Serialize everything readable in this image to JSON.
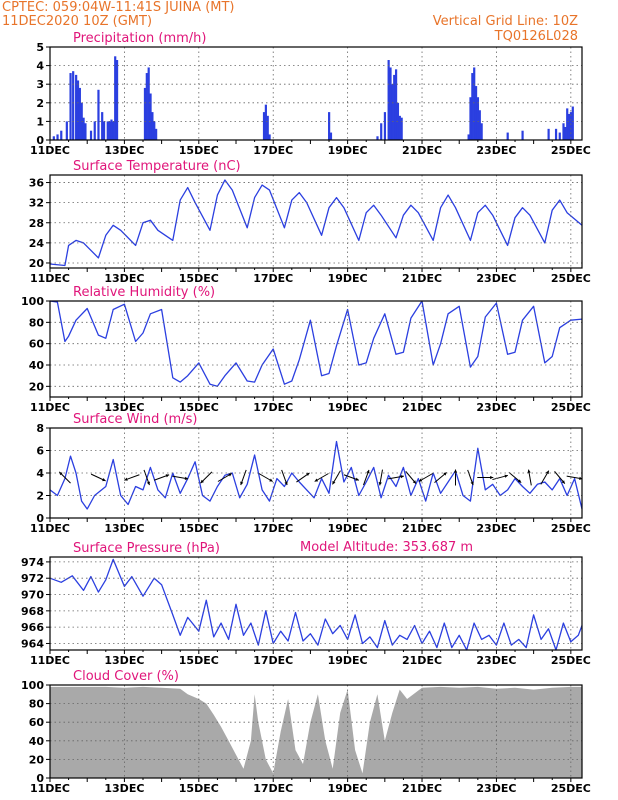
{
  "header": {
    "left_line1": "CPTEC:   059:04W-11:41S   JUINA (MT)",
    "left_line2": "11DEC2020 10Z (GMT)",
    "right_line1": "Vertical Grid Line: 10Z",
    "right_line2": "TQ0126L028"
  },
  "colors": {
    "header": "#e8742a",
    "panel_title": "#e0157a",
    "series_line": "#2b3fe0",
    "precip_bar": "#2b3fe0",
    "cloud_fill": "#a9a9a9"
  },
  "x_tick_labels": [
    "11DEC",
    "13DEC",
    "15DEC",
    "17DEC",
    "19DEC",
    "21DEC",
    "23DEC",
    "25DEC"
  ],
  "model_altitude": "Model Altitude: 353.687 m",
  "chart_data": [
    {
      "type": "bar",
      "title": "Precipitation (mm/h)",
      "x_unit": "days since 11DEC 10Z",
      "ylim": [
        0,
        5
      ],
      "yticks": [
        0,
        1,
        2,
        3,
        4,
        5
      ],
      "x": [
        0.1,
        0.2,
        0.3,
        0.45,
        0.55,
        0.62,
        0.7,
        0.75,
        0.8,
        0.85,
        0.9,
        0.95,
        1.1,
        1.2,
        1.3,
        1.4,
        1.45,
        1.55,
        1.6,
        1.65,
        1.7,
        1.75,
        1.8,
        2.55,
        2.6,
        2.65,
        2.7,
        2.75,
        2.8,
        2.85,
        5.75,
        5.8,
        5.85,
        5.9,
        7.5,
        7.55,
        8.8,
        8.9,
        9.0,
        9.1,
        9.15,
        9.2,
        9.25,
        9.3,
        9.35,
        9.4,
        9.45,
        11.25,
        11.3,
        11.35,
        11.4,
        11.45,
        11.5,
        11.55,
        11.6,
        12.3,
        12.7,
        13.4,
        13.6,
        13.7,
        13.8,
        13.85,
        13.9,
        13.95,
        14.0,
        14.05
      ],
      "values": [
        0.2,
        0.3,
        0.5,
        1.0,
        3.6,
        3.7,
        3.5,
        3.2,
        2.8,
        2.0,
        1.2,
        0.9,
        0.5,
        1.0,
        2.7,
        1.5,
        1.0,
        1.0,
        1.0,
        1.1,
        1.0,
        4.5,
        4.3,
        2.8,
        3.6,
        3.9,
        2.5,
        1.5,
        1.0,
        0.6,
        1.5,
        1.9,
        1.3,
        0.3,
        1.5,
        0.4,
        0.2,
        0.9,
        1.5,
        4.3,
        3.9,
        3.0,
        3.5,
        3.8,
        2.0,
        1.3,
        1.2,
        0.3,
        2.3,
        3.6,
        3.9,
        2.9,
        2.3,
        1.6,
        0.9,
        0.4,
        0.5,
        0.6,
        0.6,
        0.4,
        0.9,
        0.7,
        1.7,
        1.4,
        1.5,
        1.8
      ]
    },
    {
      "type": "line",
      "title": "Surface Temperature (nC)",
      "x_unit": "days since 11DEC 10Z",
      "ylim": [
        19,
        37.5
      ],
      "yticks": [
        20,
        24,
        28,
        32,
        36
      ],
      "x": [
        0,
        0.4,
        0.5,
        0.7,
        0.9,
        1.3,
        1.5,
        1.7,
        1.9,
        2.3,
        2.5,
        2.7,
        2.9,
        3.3,
        3.5,
        3.7,
        3.9,
        4.3,
        4.5,
        4.7,
        4.9,
        5.3,
        5.5,
        5.7,
        5.9,
        6.3,
        6.5,
        6.7,
        6.9,
        7.3,
        7.5,
        7.7,
        7.9,
        8.3,
        8.5,
        8.7,
        8.9,
        9.3,
        9.5,
        9.7,
        9.9,
        10.3,
        10.5,
        10.7,
        10.9,
        11.3,
        11.5,
        11.7,
        11.9,
        12.3,
        12.5,
        12.7,
        12.9,
        13.3,
        13.5,
        13.7,
        13.9,
        14.3
      ],
      "values": [
        19.8,
        19.5,
        23.5,
        24.5,
        24.0,
        21.0,
        25.5,
        27.5,
        26.5,
        23.5,
        28.0,
        28.5,
        26.5,
        24.5,
        32.5,
        35.0,
        32.0,
        26.5,
        33.5,
        36.5,
        34.5,
        27.0,
        33.0,
        35.5,
        34.5,
        27.0,
        32.5,
        34.0,
        32.0,
        25.5,
        31.0,
        33.0,
        31.0,
        24.5,
        30.0,
        31.5,
        29.5,
        25.0,
        29.5,
        31.5,
        30.0,
        24.5,
        31.0,
        33.5,
        31.0,
        24.5,
        30.0,
        31.5,
        29.5,
        23.5,
        29.0,
        31.0,
        29.5,
        24.0,
        30.5,
        32.5,
        30.0,
        27.5
      ]
    },
    {
      "type": "line",
      "title": "Relative Humidity (%)",
      "x_unit": "days since 11DEC 10Z",
      "ylim": [
        10,
        100
      ],
      "yticks": [
        20,
        40,
        60,
        80,
        100
      ],
      "x": [
        0,
        0.2,
        0.4,
        0.5,
        0.7,
        1.0,
        1.3,
        1.5,
        1.7,
        2.0,
        2.3,
        2.5,
        2.7,
        3.0,
        3.3,
        3.5,
        3.7,
        4.0,
        4.3,
        4.5,
        4.7,
        5.0,
        5.3,
        5.5,
        5.7,
        6.0,
        6.3,
        6.5,
        6.7,
        7.0,
        7.3,
        7.5,
        7.7,
        8.0,
        8.3,
        8.5,
        8.7,
        9.0,
        9.3,
        9.5,
        9.7,
        10.0,
        10.3,
        10.5,
        10.7,
        11.0,
        11.3,
        11.5,
        11.7,
        12.0,
        12.3,
        12.5,
        12.7,
        13.0,
        13.3,
        13.5,
        13.7,
        14.0,
        14.3
      ],
      "values": [
        100,
        99,
        62,
        67,
        82,
        93,
        68,
        65,
        92,
        97,
        62,
        70,
        88,
        92,
        28,
        24,
        30,
        42,
        22,
        20,
        30,
        42,
        25,
        24,
        40,
        55,
        22,
        25,
        45,
        82,
        30,
        32,
        58,
        92,
        40,
        42,
        65,
        88,
        50,
        52,
        84,
        100,
        40,
        60,
        88,
        95,
        38,
        48,
        85,
        98,
        50,
        52,
        82,
        95,
        42,
        48,
        75,
        82,
        83
      ]
    },
    {
      "type": "line",
      "title": "Surface Wind (m/s)",
      "x_unit": "days since 11DEC 10Z",
      "ylim": [
        0,
        8
      ],
      "yticks": [
        0,
        2,
        4,
        6,
        8
      ],
      "x": [
        0,
        0.2,
        0.4,
        0.55,
        0.7,
        0.85,
        1.0,
        1.2,
        1.5,
        1.7,
        1.9,
        2.1,
        2.3,
        2.5,
        2.7,
        2.9,
        3.1,
        3.3,
        3.5,
        3.7,
        3.9,
        4.1,
        4.3,
        4.5,
        4.7,
        4.9,
        5.1,
        5.3,
        5.5,
        5.7,
        5.9,
        6.1,
        6.3,
        6.5,
        6.7,
        6.9,
        7.1,
        7.3,
        7.5,
        7.7,
        7.9,
        8.1,
        8.3,
        8.5,
        8.7,
        8.9,
        9.1,
        9.3,
        9.5,
        9.7,
        9.9,
        10.1,
        10.3,
        10.5,
        10.7,
        10.9,
        11.1,
        11.3,
        11.5,
        11.7,
        11.9,
        12.1,
        12.3,
        12.5,
        12.7,
        12.9,
        13.1,
        13.3,
        13.5,
        13.7,
        13.9,
        14.1,
        14.3
      ],
      "values": [
        2.5,
        2.0,
        3.5,
        5.5,
        4.0,
        1.5,
        0.8,
        2.0,
        2.8,
        5.2,
        2.0,
        1.2,
        2.8,
        2.5,
        4.5,
        2.5,
        1.8,
        4.0,
        2.2,
        3.5,
        5.0,
        2.0,
        1.5,
        2.8,
        3.8,
        4.0,
        1.8,
        3.0,
        5.6,
        2.5,
        1.5,
        3.5,
        2.8,
        4.0,
        3.2,
        2.5,
        1.8,
        3.5,
        2.2,
        6.8,
        3.2,
        4.5,
        2.0,
        3.2,
        4.5,
        1.8,
        3.8,
        2.8,
        4.5,
        2.0,
        3.5,
        1.5,
        4.0,
        2.2,
        3.2,
        4.2,
        2.0,
        1.5,
        6.2,
        2.5,
        3.0,
        2.0,
        2.5,
        3.5,
        2.8,
        2.2,
        3.0,
        3.2,
        2.5,
        3.5,
        2.0,
        3.5,
        0.8
      ],
      "wind_barbs": {
        "x": [
          0.4,
          1.3,
          2.2,
          2.6,
          3.0,
          3.5,
          4.2,
          4.7,
          5.2,
          5.8,
          6.3,
          6.8,
          7.3,
          7.7,
          8.1,
          8.5,
          8.9,
          9.3,
          9.7,
          10.1,
          10.5,
          10.9,
          11.3,
          11.7,
          12.1,
          12.5,
          12.9,
          13.3,
          13.7,
          14.1
        ],
        "dir_deg": [
          135,
          -25,
          -160,
          -70,
          20,
          -10,
          -135,
          30,
          -110,
          -30,
          -70,
          35,
          -150,
          -120,
          -20,
          70,
          -100,
          10,
          -50,
          -150,
          40,
          90,
          -70,
          0,
          15,
          -40,
          100,
          60,
          -50,
          -10
        ]
      }
    },
    {
      "type": "line",
      "title": "Surface Pressure (hPa)",
      "x_unit": "days since 11DEC 10Z",
      "ylim": [
        963.2,
        974.6
      ],
      "yticks": [
        964,
        966,
        968,
        970,
        972,
        974
      ],
      "x": [
        0,
        0.3,
        0.6,
        0.9,
        1.1,
        1.3,
        1.5,
        1.7,
        2.0,
        2.2,
        2.5,
        2.8,
        3.0,
        3.3,
        3.5,
        3.7,
        4.0,
        4.2,
        4.4,
        4.6,
        4.8,
        5.0,
        5.2,
        5.4,
        5.6,
        5.8,
        6.0,
        6.2,
        6.4,
        6.6,
        6.8,
        7.0,
        7.2,
        7.4,
        7.6,
        7.8,
        8.0,
        8.2,
        8.4,
        8.6,
        8.8,
        9.0,
        9.2,
        9.4,
        9.6,
        9.8,
        10.0,
        10.2,
        10.4,
        10.6,
        10.8,
        11.0,
        11.2,
        11.4,
        11.6,
        11.8,
        12.0,
        12.2,
        12.4,
        12.6,
        12.8,
        13.0,
        13.2,
        13.4,
        13.6,
        13.8,
        14.0,
        14.2,
        14.3
      ],
      "values": [
        972.0,
        971.5,
        972.3,
        970.5,
        972.2,
        970.3,
        971.8,
        974.3,
        971.0,
        972.2,
        969.8,
        972.0,
        971.2,
        967.5,
        965.0,
        967.2,
        965.5,
        969.3,
        964.8,
        966.5,
        964.5,
        968.8,
        965.0,
        966.5,
        963.8,
        968.0,
        964.0,
        965.5,
        964.3,
        967.8,
        964.3,
        965.2,
        963.8,
        967.0,
        965.2,
        966.2,
        964.5,
        967.5,
        964.0,
        964.8,
        963.5,
        966.8,
        963.8,
        965.0,
        964.5,
        966.2,
        964.0,
        965.5,
        963.5,
        966.5,
        963.5,
        965.0,
        963.2,
        966.5,
        964.5,
        965.0,
        963.8,
        966.5,
        963.8,
        964.5,
        963.5,
        967.5,
        964.5,
        965.8,
        963.2,
        966.5,
        964.2,
        965.0,
        966.2
      ]
    },
    {
      "type": "area",
      "title": "Cloud Cover (%)",
      "x_unit": "days since 11DEC 10Z",
      "ylim": [
        0,
        100
      ],
      "yticks": [
        0,
        20,
        40,
        60,
        80,
        100
      ],
      "x": [
        0,
        0.5,
        1.0,
        1.5,
        2.0,
        2.5,
        3.0,
        3.5,
        3.7,
        4.0,
        4.2,
        4.4,
        4.6,
        4.8,
        5.0,
        5.2,
        5.4,
        5.5,
        5.6,
        5.8,
        6.0,
        6.2,
        6.4,
        6.6,
        6.8,
        7.0,
        7.2,
        7.4,
        7.6,
        7.8,
        8.0,
        8.2,
        8.4,
        8.6,
        8.8,
        9.0,
        9.2,
        9.4,
        9.6,
        10.0,
        10.5,
        11.0,
        11.5,
        12.0,
        12.5,
        13.0,
        13.5,
        14.0,
        14.3
      ],
      "values": [
        98,
        98,
        98,
        98,
        97,
        98,
        97,
        96,
        90,
        85,
        80,
        68,
        55,
        40,
        25,
        10,
        40,
        90,
        60,
        20,
        5,
        50,
        85,
        30,
        15,
        60,
        90,
        40,
        10,
        70,
        95,
        30,
        5,
        60,
        90,
        40,
        70,
        95,
        85,
        97,
        98,
        97,
        98,
        96,
        97,
        95,
        97,
        98,
        98
      ]
    }
  ]
}
